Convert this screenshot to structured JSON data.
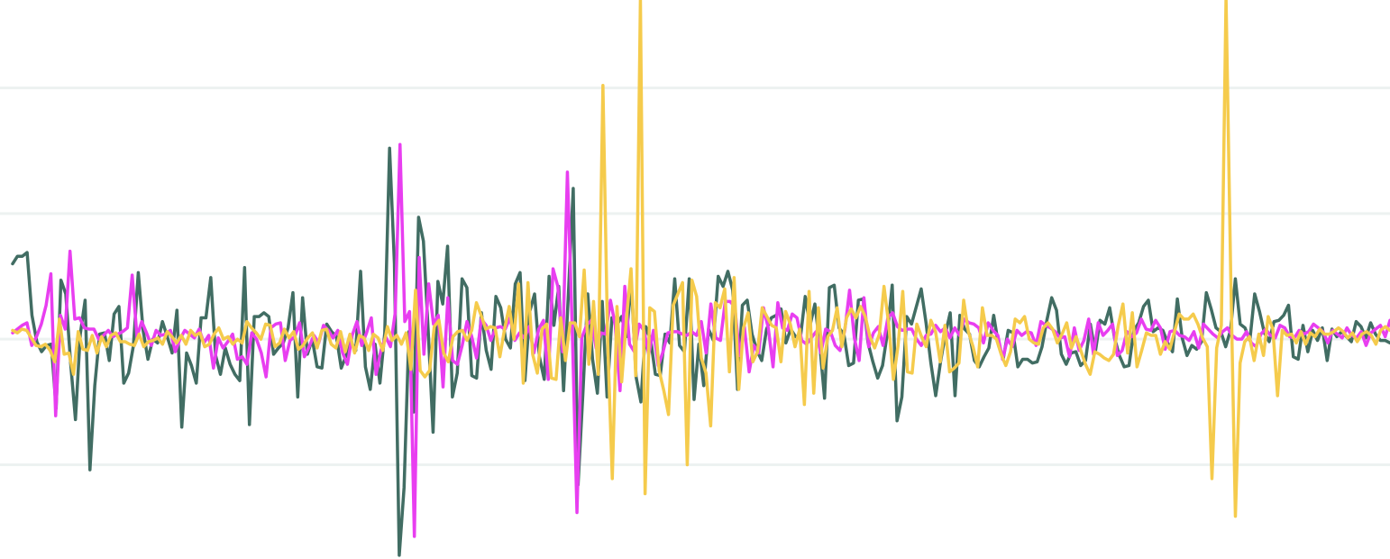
{
  "chart_data": {
    "type": "line",
    "title": "",
    "xlabel": "",
    "ylabel": "",
    "grid": true,
    "grid_lines_y": [
      2,
      1,
      0,
      -1
    ],
    "ylim": [
      -1.75,
      2.7
    ],
    "xlim": [
      0,
      288
    ],
    "series": [
      {
        "color": "#416d63",
        "values": [
          0.6,
          0.66,
          0.66,
          0.69,
          0.19,
          -0.02,
          -0.1,
          -0.05,
          -0.04,
          -0.55,
          0.47,
          0.36,
          -0.19,
          -0.64,
          0.04,
          0.31,
          -1.04,
          -0.37,
          0.04,
          0.05,
          -0.17,
          0.2,
          0.26,
          -0.35,
          -0.27,
          -0.05,
          0.53,
          0.07,
          -0.16,
          0.0,
          -0.03,
          0.14,
          0.02,
          -0.11,
          0.23,
          -0.7,
          -0.11,
          -0.21,
          -0.35,
          0.17,
          0.17,
          0.49,
          -0.13,
          -0.28,
          -0.07,
          -0.2,
          -0.28,
          -0.33,
          0.57,
          -0.68,
          0.18,
          0.18,
          0.21,
          0.18,
          -0.12,
          -0.07,
          -0.03,
          0.09,
          0.37,
          -0.46,
          0.33,
          -0.12,
          0.0,
          -0.22,
          -0.23,
          0.12,
          0.06,
          0.02,
          -0.23,
          -0.13,
          -0.02,
          -0.09,
          0.54,
          -0.22,
          -0.4,
          -0.04,
          -0.35,
          0.05,
          1.52,
          0.6,
          -1.72,
          -1.18,
          0.06,
          -0.58,
          0.97,
          0.78,
          0.06,
          -0.74,
          0.46,
          0.28,
          0.74,
          -0.46,
          -0.27,
          0.48,
          0.41,
          -0.29,
          -0.31,
          0.21,
          -0.09,
          -0.24,
          0.34,
          0.25,
          0.0,
          -0.07,
          0.44,
          0.53,
          -0.33,
          0.22,
          0.36,
          -0.14,
          -0.32,
          0.5,
          0.11,
          0.42,
          -0.41,
          0.36,
          1.2,
          -1.16,
          -0.43,
          0.36,
          -0.16,
          -0.43,
          0.3,
          -0.46,
          0.17,
          0.11,
          0.18,
          0.02,
          0.46,
          -0.3,
          -0.5,
          0.1,
          0.0,
          -0.28,
          -0.29,
          0.04,
          -0.03,
          0.48,
          -0.05,
          -0.1,
          0.48,
          -0.48,
          -0.04,
          -0.37,
          0.08,
          -0.01,
          0.5,
          0.42,
          0.54,
          0.39,
          -0.4,
          0.27,
          0.31,
          0.04,
          -0.09,
          -0.17,
          0.08,
          0.17,
          0.19,
          0.24,
          -0.03,
          0.08,
          0.02,
          0.01,
          0.34,
          0.11,
          0.28,
          -0.04,
          -0.47,
          0.41,
          0.43,
          0.09,
          0.04,
          -0.21,
          -0.19,
          0.31,
          0.32,
          -0.03,
          -0.18,
          -0.31,
          -0.21,
          0.05,
          0.43,
          -0.65,
          -0.46,
          0.18,
          0.12,
          0.26,
          0.4,
          0.13,
          -0.19,
          -0.45,
          -0.18,
          0.04,
          0.21,
          -0.45,
          0.19,
          0.08,
          0.04,
          -0.17,
          -0.22,
          -0.14,
          -0.07,
          0.19,
          -0.05,
          -0.15,
          0.07,
          0.05,
          -0.22,
          -0.16,
          -0.16,
          -0.19,
          -0.18,
          -0.06,
          0.15,
          0.33,
          0.23,
          -0.12,
          -0.2,
          -0.11,
          -0.1,
          -0.21,
          -0.17,
          0.12,
          -0.11,
          0.15,
          0.12,
          0.25,
          0.01,
          -0.13,
          -0.22,
          -0.21,
          0.07,
          0.13,
          0.26,
          0.31,
          0.06,
          0.09,
          0.07,
          -0.03,
          -0.1,
          0.32,
          0.01,
          -0.13,
          -0.05,
          -0.08,
          -0.02,
          0.37,
          0.24,
          0.09,
          0.06,
          -0.06,
          0.07,
          0.48,
          0.12,
          0.09,
          -0.01,
          0.36,
          0.22,
          0.05,
          -0.02,
          0.14,
          0.15,
          0.19,
          0.27,
          -0.14,
          -0.16,
          0.11,
          -0.1,
          0.07,
          -0.01,
          0.09,
          -0.17,
          0.08,
          0.02,
          0.06,
          0.02,
          -0.02,
          0.14,
          0.1,
          0.01,
          0.13,
          0.04,
          -0.01,
          -0.01,
          -0.03
        ]
      },
      {
        "color": "#e83ef0",
        "values": [
          0.05,
          0.08,
          0.11,
          0.13,
          -0.05,
          0.02,
          0.12,
          0.27,
          0.52,
          -0.61,
          0.19,
          0.08,
          0.7,
          0.16,
          0.17,
          0.09,
          0.08,
          0.08,
          0.0,
          0.03,
          0.07,
          0.02,
          0.04,
          0.06,
          0.09,
          0.51,
          0.02,
          0.14,
          0.05,
          -0.05,
          0.07,
          0.03,
          0.04,
          0.07,
          -0.1,
          0.0,
          0.07,
          0.04,
          0.01,
          0.08,
          -0.03,
          0.03,
          -0.23,
          0.01,
          -0.07,
          -0.02,
          0.04,
          -0.16,
          -0.14,
          -0.2,
          0.05,
          0.0,
          -0.11,
          -0.3,
          0.09,
          0.12,
          0.13,
          -0.17,
          -0.01,
          0.02,
          0.13,
          -0.14,
          -0.06,
          0.03,
          -0.03,
          0.11,
          0.07,
          0.01,
          0.07,
          -0.11,
          -0.2,
          0.03,
          0.14,
          -0.05,
          0.05,
          0.17,
          -0.28,
          -0.09,
          0.02,
          -0.06,
          0.21,
          1.55,
          0.14,
          0.22,
          -1.57,
          0.65,
          -0.12,
          0.44,
          0.12,
          0.19,
          -0.38,
          0.33,
          -0.17,
          -0.2,
          -0.05,
          0.14,
          0.02,
          -0.15,
          0.16,
          0.11,
          -0.01,
          0.09,
          0.1,
          0.08,
          0.17,
          -0.01,
          0.05,
          0.01,
          0.1,
          -0.11,
          0.08,
          0.15,
          -0.32,
          0.56,
          0.42,
          -0.1,
          1.33,
          0.1,
          -1.38,
          0.01,
          0.11,
          0.15,
          -0.07,
          0.05,
          0.04,
          0.31,
          0.11,
          -0.41,
          0.42,
          -0.04,
          -0.1,
          0.12,
          0.07,
          -0.12,
          0.07,
          -0.21,
          -0.1,
          0.05,
          0.06,
          0.06,
          0.04,
          0.03,
          0.06,
          0.03,
          0.14,
          -0.11,
          0.28,
          0.01,
          -0.01,
          0.3,
          0.3,
          0.26,
          -0.13,
          0.1,
          -0.26,
          -0.05,
          -0.11,
          0.25,
          0.09,
          -0.22,
          0.29,
          0.09,
          0.07,
          0.2,
          0.17,
          -0.01,
          -0.04,
          0.01,
          0.06,
          -0.11,
          0.08,
          0.06,
          -0.05,
          -0.09,
          0.07,
          0.39,
          0.01,
          -0.17,
          0.33,
          -0.06,
          0.05,
          0.1,
          -0.05,
          0.17,
          0.21,
          0.1,
          0.07,
          0.08,
          0.08,
          0.0,
          -0.05,
          0.03,
          0.04,
          0.11,
          0.06,
          0.09,
          0.01,
          0.09,
          0.03,
          0.16,
          0.13,
          0.12,
          0.09,
          -0.03,
          0.13,
          0.07,
          0.03,
          -0.16,
          0.0,
          -0.06,
          0.07,
          0.03,
          0.06,
          0.05,
          -0.05,
          0.14,
          0.11,
          0.09,
          0.06,
          0.01,
          0.02,
          -0.14,
          0.09,
          -0.09,
          -0.01,
          0.16,
          -0.12,
          0.13,
          0.03,
          0.07,
          0.12,
          -0.13,
          -0.09,
          0.06,
          0.02,
          0.05,
          0.16,
          0.08,
          0.07,
          0.15,
          0.09,
          -0.08,
          0.06,
          0.07,
          0.03,
          0.02,
          -0.01,
          0.06,
          -0.07,
          0.12,
          0.08,
          0.04,
          0.01,
          0.06,
          0.09,
          0.03,
          0.0,
          0.0,
          0.06,
          -0.03,
          -0.06,
          0.04,
          0.08,
          0.03,
          0.01,
          0.11,
          0.09,
          0.02,
          0.01,
          0.07,
          0.04,
          0.06,
          0.12,
          0.09,
          0.06,
          -0.03,
          0.07,
          0.04,
          0.01,
          0.09,
          0.03,
          0.01,
          0.06,
          -0.05,
          0.05,
          0.08,
          0.11,
          0.02,
          0.15
        ]
      },
      {
        "color": "#f5cb4c",
        "values": [
          0.07,
          0.05,
          0.08,
          0.07,
          0.01,
          -0.05,
          -0.06,
          -0.04,
          -0.09,
          -0.18,
          0.16,
          -0.12,
          -0.11,
          -0.28,
          0.06,
          -0.08,
          -0.09,
          0.03,
          -0.11,
          0.02,
          -0.06,
          0.03,
          0.05,
          -0.02,
          -0.02,
          -0.04,
          -0.05,
          0.04,
          -0.06,
          -0.02,
          -0.01,
          0.01,
          -0.04,
          0.06,
          0.02,
          -0.03,
          0.03,
          -0.04,
          0.07,
          0.03,
          0.05,
          -0.06,
          -0.04,
          0.04,
          0.09,
          0.0,
          0.02,
          -0.04,
          0.0,
          -0.03,
          0.14,
          0.09,
          0.05,
          0.0,
          0.12,
          0.11,
          -0.06,
          -0.03,
          0.08,
          0.01,
          0.06,
          -0.08,
          -0.05,
          0.01,
          0.05,
          -0.07,
          0.07,
          0.08,
          -0.04,
          -0.07,
          0.06,
          -0.1,
          0.04,
          -0.11,
          0.03,
          0.01,
          -0.09,
          0.04,
          0.01,
          -0.09,
          0.1,
          -0.01,
          0.03,
          -0.04,
          0.05,
          -0.24,
          0.39,
          -0.25,
          -0.3,
          -0.25,
          0.1,
          0.15,
          -0.11,
          -0.18,
          0.02,
          0.06,
          0.07,
          -0.01,
          0.07,
          0.29,
          0.19,
          0.08,
          0.1,
          0.09,
          -0.14,
          0.08,
          0.26,
          0.0,
          0.44,
          -0.35,
          0.45,
          -0.12,
          -0.27,
          0.08,
          0.12,
          -0.31,
          -0.32,
          0.17,
          -0.17,
          0.13,
          0.13,
          0.02,
          0.55,
          -0.2,
          0.3,
          -0.28,
          2.02,
          0.0,
          -1.11,
          0.26,
          -0.34,
          0.15,
          0.56,
          -0.29,
          2.71,
          -1.23,
          0.25,
          0.22,
          -0.25,
          -0.41,
          -0.6,
          0.27,
          0.36,
          0.45,
          -1.0,
          0.47,
          0.34,
          -0.15,
          -0.27,
          -0.69,
          0.29,
          0.25,
          0.4,
          -0.26,
          0.49,
          -0.4,
          0.09,
          0.21,
          -0.18,
          -0.1,
          0.25,
          0.18,
          0.11,
          0.09,
          -0.18,
          0.22,
          0.12,
          -0.06,
          0.08,
          -0.52,
          0.38,
          -0.43,
          0.25,
          -0.23,
          0.02,
          0.07,
          0.25,
          -0.06,
          0.17,
          0.24,
          0.17,
          0.26,
          0.18,
          0.02,
          -0.07,
          0.04,
          0.42,
          0.12,
          -0.32,
          -0.05,
          0.38,
          -0.26,
          -0.27,
          0.12,
          0.02,
          -0.06,
          0.15,
          0.06,
          -0.18,
          0.11,
          -0.26,
          -0.23,
          -0.19,
          0.31,
          0.06,
          -0.06,
          -0.22,
          0.25,
          0.03,
          0.03,
          0.0,
          -0.12,
          -0.21,
          -0.1,
          0.16,
          0.13,
          0.18,
          0.0,
          -0.03,
          -0.04,
          0.09,
          0.13,
          0.08,
          -0.03,
          0.04,
          0.13,
          -0.07,
          0.02,
          -0.09,
          -0.2,
          -0.28,
          -0.1,
          -0.12,
          -0.15,
          -0.17,
          -0.12,
          0.11,
          0.28,
          -0.11,
          0.21,
          -0.22,
          -0.09,
          0.05,
          0.03,
          0.03,
          -0.12,
          -0.02,
          -0.08,
          0.06,
          0.2,
          0.16,
          0.16,
          0.2,
          0.12,
          0.01,
          -0.06,
          -1.11,
          -0.07,
          0.11,
          2.72,
          0.52,
          -1.41,
          -0.19,
          -0.02,
          0.02,
          -0.17,
          0.04,
          -0.13,
          0.18,
          0.08,
          -0.45,
          0.07,
          0.03,
          0.04,
          -0.03,
          0.06,
          -0.04,
          0.05,
          0.02,
          0.08,
          0.04,
          0.04,
          0.06,
          0.09,
          0.06,
          0.01,
          0.05,
          -0.02,
          0.04,
          0.06,
          0.03,
          -0.04,
          0.07,
          0.1,
          0.07
        ]
      }
    ]
  }
}
